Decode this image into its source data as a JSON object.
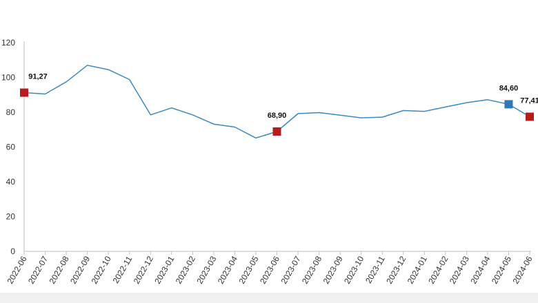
{
  "chart_data": {
    "type": "line",
    "title": "",
    "xlabel": "",
    "ylabel": "",
    "ylim": [
      0,
      120
    ],
    "yticks": [
      0,
      20,
      40,
      60,
      80,
      100,
      120
    ],
    "grid": false,
    "categories": [
      "2022-06",
      "2022-07",
      "2022-08",
      "2022-09",
      "2022-10",
      "2022-11",
      "2022-12",
      "2023-01",
      "2023-02",
      "2023-03",
      "2023-04",
      "2023-05",
      "2023-06",
      "2023-07",
      "2023-08",
      "2023-09",
      "2023-10",
      "2023-11",
      "2023-12",
      "2024-01",
      "2024-02",
      "2024-03",
      "2024-04",
      "2024-05",
      "2024-06"
    ],
    "series": [
      {
        "values": [
          91.27,
          90.5,
          97.5,
          107.0,
          104.5,
          98.8,
          78.5,
          82.5,
          78.5,
          73.2,
          71.5,
          65.2,
          68.9,
          79.2,
          79.8,
          78.3,
          76.8,
          77.2,
          81.0,
          80.5,
          83.0,
          85.5,
          87.2,
          84.6,
          77.41
        ],
        "color": "#3a89c0"
      }
    ],
    "highlights": [
      {
        "index": 0,
        "label": "91,27",
        "color": "#b51c1c"
      },
      {
        "index": 12,
        "label": "68,90",
        "color": "#b51c1c"
      },
      {
        "index": 23,
        "label": "84,60",
        "color": "#2e78b5"
      },
      {
        "index": 24,
        "label": "77,41",
        "color": "#b51c1c"
      }
    ],
    "footer_band_color": "#f1f1f1"
  }
}
